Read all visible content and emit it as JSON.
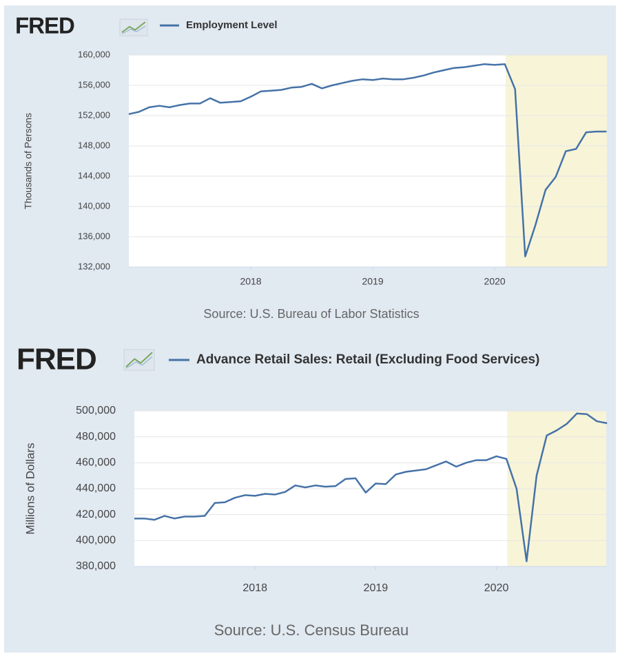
{
  "chart_data": [
    {
      "type": "line",
      "brand": "FRED",
      "y_label": "Thousands of Persons",
      "source": "Source: U.S. Bureau of Labor Statistics",
      "x": [
        2017,
        2017.083,
        2017.167,
        2017.25,
        2017.333,
        2017.417,
        2017.5,
        2017.583,
        2017.667,
        2017.75,
        2017.833,
        2017.917,
        2018,
        2018.083,
        2018.167,
        2018.25,
        2018.333,
        2018.417,
        2018.5,
        2018.583,
        2018.667,
        2018.75,
        2018.833,
        2018.917,
        2019,
        2019.083,
        2019.167,
        2019.25,
        2019.333,
        2019.417,
        2019.5,
        2019.583,
        2019.667,
        2019.75,
        2019.833,
        2019.917,
        2020,
        2020.083,
        2020.167,
        2020.25,
        2020.333,
        2020.417,
        2020.5,
        2020.583,
        2020.667,
        2020.75,
        2020.833,
        2020.917
      ],
      "series": [
        {
          "name": "Employment Level",
          "color": "#4572a7",
          "values": [
            152200,
            152500,
            153100,
            153300,
            153100,
            153400,
            153600,
            153600,
            154300,
            153700,
            153800,
            153900,
            154500,
            155200,
            155300,
            155400,
            155700,
            155800,
            156200,
            155600,
            156000,
            156300,
            156600,
            156800,
            156700,
            156900,
            156800,
            156800,
            157000,
            157300,
            157700,
            158000,
            158300,
            158400,
            158600,
            158800,
            158700,
            158800,
            155500,
            133400,
            137500,
            142200,
            143900,
            147300,
            147600,
            149800,
            149900,
            149900
          ]
        }
      ],
      "shading": {
        "x": [
          2020.09,
          2020.92
        ],
        "color": "#f7f4d8"
      },
      "xlim": [
        2017,
        2020.92
      ],
      "xticks": [
        2018,
        2019,
        2020
      ],
      "ylim": [
        132000,
        160000
      ],
      "yticks": [
        {
          "value": 132000,
          "label": "132,000"
        },
        {
          "value": 136000,
          "label": "136,000"
        },
        {
          "value": 140000,
          "label": "140,000"
        },
        {
          "value": 144000,
          "label": "144,000"
        },
        {
          "value": 148000,
          "label": "148,000"
        },
        {
          "value": 152000,
          "label": "152,000"
        },
        {
          "value": 156000,
          "label": "156,000"
        },
        {
          "value": 160000,
          "label": "160,000"
        }
      ],
      "grid": true
    },
    {
      "type": "line",
      "brand": "FRED",
      "y_label": "Millions of Dollars",
      "source": "Source: U.S. Census Bureau",
      "x": [
        2017,
        2017.083,
        2017.167,
        2017.25,
        2017.333,
        2017.417,
        2017.5,
        2017.583,
        2017.667,
        2017.75,
        2017.833,
        2017.917,
        2018,
        2018.083,
        2018.167,
        2018.25,
        2018.333,
        2018.417,
        2018.5,
        2018.583,
        2018.667,
        2018.75,
        2018.833,
        2018.917,
        2019,
        2019.083,
        2019.167,
        2019.25,
        2019.333,
        2019.417,
        2019.5,
        2019.583,
        2019.667,
        2019.75,
        2019.833,
        2019.917,
        2020,
        2020.083,
        2020.167,
        2020.25,
        2020.333,
        2020.417,
        2020.5,
        2020.583,
        2020.667,
        2020.75,
        2020.833,
        2020.917
      ],
      "series": [
        {
          "name": "Advance Retail Sales: Retail (Excluding Food Services)",
          "color": "#4572a7",
          "values": [
            417000,
            417000,
            416000,
            419000,
            417000,
            418500,
            418500,
            419000,
            429000,
            429500,
            433000,
            435000,
            434500,
            436000,
            435500,
            437500,
            442500,
            441000,
            442500,
            441500,
            442000,
            447500,
            448000,
            437000,
            444000,
            443500,
            451000,
            453000,
            454000,
            455000,
            458000,
            461000,
            457000,
            460000,
            462000,
            462000,
            465000,
            463000,
            440000,
            384000,
            450000,
            481000,
            485000,
            490000,
            498000,
            497500,
            492000,
            490500
          ]
        }
      ],
      "shading": {
        "x": [
          2020.09,
          2020.91
        ],
        "color": "#f7f4d8"
      },
      "xlim": [
        2017,
        2020.91
      ],
      "xticks": [
        2018,
        2019,
        2020
      ],
      "ylim": [
        380000,
        500000
      ],
      "yticks": [
        {
          "value": 380000,
          "label": "380,000"
        },
        {
          "value": 400000,
          "label": "400,000"
        },
        {
          "value": 420000,
          "label": "420,000"
        },
        {
          "value": 440000,
          "label": "440,000"
        },
        {
          "value": 460000,
          "label": "460,000"
        },
        {
          "value": 480000,
          "label": "480,000"
        },
        {
          "value": 500000,
          "label": "500,000"
        }
      ],
      "grid": true
    }
  ]
}
